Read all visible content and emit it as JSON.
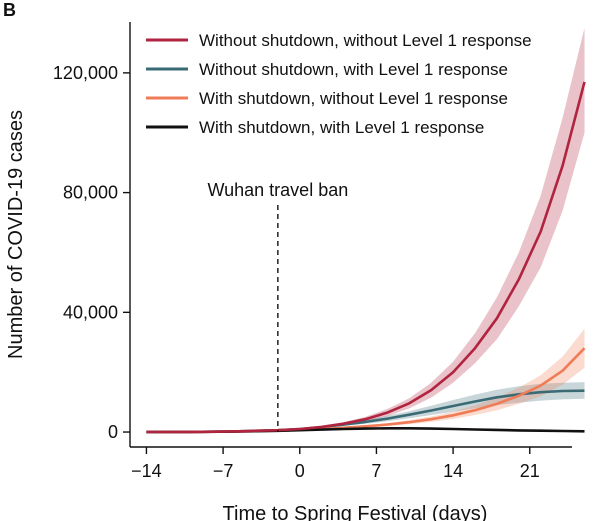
{
  "panel_label": "B",
  "chart_data": {
    "type": "line",
    "title": "",
    "xlabel": "Time to Spring Festival (days)",
    "ylabel": "Number of COVID-19 cases",
    "xlim": [
      -15.5,
      26.5
    ],
    "ylim": [
      -5000,
      137000
    ],
    "x_ticks": [
      -14,
      -7,
      0,
      7,
      14,
      21
    ],
    "x_tick_labels": [
      "−14",
      "−7",
      "0",
      "7",
      "14",
      "21"
    ],
    "y_ticks": [
      0,
      40000,
      80000,
      120000
    ],
    "y_tick_labels": [
      "0",
      "40,000",
      "80,000",
      "120,000"
    ],
    "grid": false,
    "legend_position": "top",
    "annotation": {
      "label": "Wuhan travel ban",
      "x": -2
    },
    "series": [
      {
        "name": "Without shutdown, without Level 1 response",
        "color": "#b0243f",
        "x": [
          -14,
          -10,
          -6,
          -2,
          0,
          2,
          4,
          6,
          8,
          10,
          12,
          14,
          16,
          18,
          20,
          22,
          24,
          26
        ],
        "values": [
          0,
          50,
          200,
          600,
          1000,
          1700,
          2800,
          4300,
          6500,
          9600,
          14000,
          20000,
          28000,
          38000,
          51000,
          67000,
          89000,
          117000
        ],
        "lower": [
          0,
          40,
          170,
          500,
          850,
          1400,
          2300,
          3500,
          5300,
          7900,
          11500,
          16500,
          23000,
          31000,
          42000,
          55000,
          74000,
          100000
        ],
        "upper": [
          0,
          60,
          240,
          700,
          1150,
          2000,
          3300,
          5100,
          7700,
          11300,
          16500,
          23500,
          33000,
          45000,
          60000,
          79000,
          105000,
          135000
        ]
      },
      {
        "name": "Without shutdown, with Level 1 response",
        "color": "#3a6b75",
        "x": [
          -14,
          -10,
          -6,
          -2,
          0,
          2,
          4,
          6,
          8,
          10,
          12,
          14,
          16,
          18,
          20,
          22,
          24,
          26
        ],
        "values": [
          0,
          50,
          200,
          600,
          1000,
          1600,
          2500,
          3400,
          4500,
          5800,
          7200,
          8700,
          10200,
          11600,
          12600,
          13300,
          13700,
          13800
        ],
        "lower": [
          0,
          40,
          170,
          500,
          850,
          1350,
          2100,
          2800,
          3600,
          4600,
          5700,
          6800,
          7900,
          9000,
          9800,
          10500,
          10900,
          11100
        ],
        "upper": [
          0,
          60,
          240,
          700,
          1150,
          1850,
          2900,
          4000,
          5400,
          7000,
          8800,
          10700,
          12500,
          14100,
          15300,
          16100,
          16500,
          16700
        ]
      },
      {
        "name": "With shutdown, without Level 1 response",
        "color": "#f07c57",
        "x": [
          -14,
          -10,
          -6,
          -2,
          0,
          2,
          4,
          6,
          8,
          10,
          12,
          14,
          16,
          18,
          20,
          22,
          24,
          26
        ],
        "values": [
          0,
          40,
          150,
          450,
          700,
          1000,
          1400,
          1900,
          2500,
          3300,
          4300,
          5600,
          7300,
          9400,
          12100,
          15500,
          20500,
          28000
        ],
        "lower": [
          0,
          30,
          120,
          380,
          580,
          820,
          1150,
          1550,
          2000,
          2650,
          3400,
          4400,
          5700,
          7300,
          9400,
          12000,
          15800,
          21500
        ],
        "upper": [
          0,
          50,
          180,
          520,
          820,
          1180,
          1650,
          2250,
          3000,
          3950,
          5200,
          6800,
          8900,
          11500,
          14800,
          19000,
          25200,
          34500
        ]
      },
      {
        "name": "With shutdown, with Level 1 response",
        "color": "#111111",
        "x": [
          -14,
          -10,
          -6,
          -2,
          0,
          2,
          4,
          6,
          8,
          10,
          12,
          14,
          16,
          18,
          20,
          22,
          24,
          26
        ],
        "values": [
          0,
          40,
          150,
          400,
          600,
          800,
          1000,
          1150,
          1250,
          1250,
          1150,
          1000,
          850,
          700,
          550,
          450,
          350,
          250
        ]
      }
    ]
  }
}
